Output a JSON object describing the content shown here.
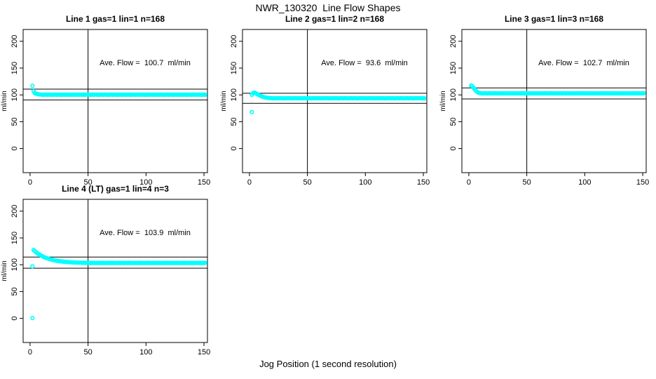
{
  "header": {
    "title": "NWR_130320  Line Flow Shapes"
  },
  "footer": {
    "xlabel": "Jog Position (1 second resolution)"
  },
  "colors": {
    "series": "#00FFFF",
    "axis": "#000000",
    "background": "#FFFFFF"
  },
  "chart_data": {
    "type": "scatter",
    "title": "NWR_130320  Line Flow Shapes",
    "xlabel": "Jog Position (1 second resolution)",
    "ylabel": "ml/min",
    "marker": "open-circle",
    "marker_color": "#00FFFF",
    "grid": false,
    "xticks": [
      0,
      50,
      100,
      150
    ],
    "yticks": [
      0,
      50,
      100,
      150,
      200
    ],
    "xlim": [
      -6,
      153
    ],
    "ylim": [
      -45,
      222
    ],
    "vline_x": 50,
    "panels": [
      {
        "title": "Line 1 gas=1 lin=1 n=168",
        "annotation": "Ave. Flow =  100.7  ml/min",
        "ave_flow": 100.7,
        "ref_lines": [
          110.8,
          90.6
        ],
        "x_start": 2,
        "y": [
          117,
          107,
          103.6,
          102.4,
          101.7,
          101.2,
          100.9,
          100.7,
          100.5,
          100.2,
          100.6,
          100.4,
          100.7,
          100.3,
          100.5,
          100.6,
          100.5,
          100.2,
          100.6,
          100.4,
          100.7,
          100.3,
          100.5,
          100.6,
          100.5,
          100.2,
          100.6,
          100.4,
          100.7,
          100.3,
          100.5,
          100.6,
          100.5,
          100.2,
          100.6,
          100.4,
          100.7,
          100.3,
          100.5,
          100.6,
          100.5,
          100.2,
          100.6,
          100.4,
          100.7,
          100.3,
          100.5,
          100.6,
          100.5,
          100.2,
          100.6,
          100.4,
          100.7,
          100.3,
          100.5,
          100.6,
          100.5,
          100.2,
          100.6,
          100.4,
          100.7,
          100.3,
          100.5,
          100.6,
          100.5,
          100.2,
          100.6,
          100.4,
          100.7,
          100.3,
          100.5,
          100.6,
          100.5,
          100.2,
          100.6,
          100.4,
          100.7,
          100.3,
          100.5,
          100.6,
          100.5,
          100.2,
          100.6,
          100.4,
          100.7,
          100.3,
          100.5,
          100.6,
          100.5,
          100.2,
          100.6,
          100.4,
          100.7,
          100.3,
          100.5,
          100.6,
          100.5,
          100.2,
          100.6,
          100.4,
          100.7,
          100.3,
          100.5,
          100.6,
          100.5,
          100.2,
          100.6,
          100.4,
          100.7,
          100.3,
          100.5,
          100.6,
          100.5,
          100.2,
          100.6,
          100.4,
          100.7,
          100.3,
          100.5,
          100.6,
          100.5,
          100.2,
          100.6,
          100.4,
          100.7,
          100.3,
          100.5,
          100.6,
          100.5,
          100.2,
          100.6,
          100.4,
          100.7,
          100.3,
          100.5,
          100.6,
          100.5,
          100.2,
          100.6,
          100.4,
          100.7,
          100.3,
          100.5,
          100.6,
          100.5,
          100.2,
          100.6,
          100.4,
          100.7,
          100.3
        ],
        "extra_points": []
      },
      {
        "title": "Line 2 gas=1 lin=2 n=168",
        "annotation": "Ave. Flow =  93.6  ml/min",
        "ave_flow": 93.6,
        "ref_lines": [
          103.0,
          84.2
        ],
        "x_start": 2,
        "y": [
          100.2,
          102.8,
          104.2,
          103.8,
          102.5,
          101.1,
          99.9,
          98.8,
          97.8,
          97.0,
          96.2,
          95.6,
          95.1,
          94.7,
          94.4,
          94.2,
          94.0,
          93.9,
          93.7,
          93.4,
          93.8,
          93.6,
          93.9,
          93.5,
          93.7,
          93.8,
          93.7,
          93.4,
          93.8,
          93.6,
          93.9,
          93.5,
          93.7,
          93.8,
          93.7,
          93.4,
          93.8,
          93.6,
          93.9,
          93.5,
          93.7,
          93.8,
          93.7,
          93.4,
          93.8,
          93.6,
          93.9,
          93.5,
          93.7,
          93.8,
          93.7,
          93.4,
          93.8,
          93.6,
          93.9,
          93.5,
          93.7,
          93.8,
          93.7,
          93.4,
          93.8,
          93.6,
          93.9,
          93.5,
          93.7,
          93.8,
          93.7,
          93.4,
          93.8,
          93.6,
          93.9,
          93.5,
          93.7,
          93.8,
          93.7,
          93.4,
          93.8,
          93.6,
          93.9,
          93.5,
          93.7,
          93.8,
          93.7,
          93.4,
          93.8,
          93.6,
          93.9,
          93.5,
          93.7,
          93.8,
          93.7,
          93.4,
          93.8,
          93.6,
          93.9,
          93.5,
          93.7,
          93.8,
          93.7,
          93.4,
          93.8,
          93.6,
          93.9,
          93.5,
          93.7,
          93.8,
          93.7,
          93.4,
          93.8,
          93.6,
          93.9,
          93.5,
          93.7,
          93.8,
          93.7,
          93.4,
          93.8,
          93.6,
          93.9,
          93.5,
          93.7,
          93.8,
          93.7,
          93.4,
          93.8,
          93.6,
          93.9,
          93.5,
          93.7,
          93.8,
          93.7,
          93.4,
          93.8,
          93.6,
          93.9,
          93.5,
          93.7,
          93.8,
          93.7,
          93.4,
          93.8,
          93.6,
          93.9,
          93.5,
          93.7,
          93.8,
          93.7,
          93.4,
          93.8,
          93.6
        ],
        "extra_points": [
          [
            2,
            68
          ]
        ]
      },
      {
        "title": "Line 3 gas=1 lin=3 n=168",
        "annotation": "Ave. Flow =  102.7  ml/min",
        "ave_flow": 102.7,
        "ref_lines": [
          113.0,
          92.4
        ],
        "x_start": 2,
        "y": [
          117.5,
          116.2,
          113.4,
          110.4,
          107.9,
          105.9,
          104.5,
          103.6,
          103.1,
          102.9,
          102.6,
          103.0,
          102.8,
          103.1,
          102.7,
          102.9,
          103.0,
          102.9,
          102.6,
          103.0,
          102.8,
          103.1,
          102.7,
          102.9,
          103.0,
          102.9,
          102.6,
          103.0,
          102.8,
          103.1,
          102.7,
          102.9,
          103.0,
          102.9,
          102.6,
          103.0,
          102.8,
          103.1,
          102.7,
          102.9,
          103.0,
          102.9,
          102.6,
          103.0,
          102.8,
          103.1,
          102.7,
          102.9,
          103.0,
          102.9,
          102.6,
          103.0,
          102.8,
          103.1,
          102.7,
          102.9,
          103.0,
          102.9,
          102.6,
          103.0,
          102.8,
          103.1,
          102.7,
          102.9,
          103.0,
          102.9,
          102.6,
          103.0,
          102.8,
          103.1,
          102.7,
          102.9,
          103.0,
          102.9,
          102.6,
          103.0,
          102.8,
          103.1,
          102.7,
          102.9,
          103.0,
          102.9,
          102.6,
          103.0,
          102.8,
          103.1,
          102.7,
          102.9,
          103.0,
          102.9,
          102.6,
          103.0,
          102.8,
          103.1,
          102.7,
          102.9,
          103.0,
          102.9,
          102.6,
          103.0,
          102.8,
          103.1,
          102.7,
          102.9,
          103.0,
          102.9,
          102.6,
          103.0,
          102.8,
          103.1,
          102.7,
          102.9,
          103.0,
          102.9,
          102.6,
          103.0,
          102.8,
          103.1,
          102.7,
          102.9,
          103.0,
          102.9,
          102.6,
          103.0,
          102.8,
          103.1,
          102.7,
          102.9,
          103.0,
          102.9,
          102.6,
          103.0,
          102.8,
          103.1,
          102.7,
          102.9,
          103.0,
          102.9,
          102.6,
          103.0,
          102.8,
          103.1,
          102.7,
          102.9,
          103.0,
          102.9,
          102.6,
          103.0,
          102.8,
          103.1
        ],
        "extra_points": []
      },
      {
        "title": "Line 4 (LT) gas=1 lin=4 n=3",
        "annotation": "Ave. Flow =  103.9  ml/min",
        "ave_flow": 103.9,
        "ref_lines": [
          114.3,
          93.5
        ],
        "x_start": 3,
        "y": [
          127.6,
          125.6,
          123.7,
          122.0,
          120.4,
          119.0,
          117.7,
          116.5,
          115.4,
          114.3,
          113.4,
          112.6,
          111.8,
          111.1,
          110.4,
          109.8,
          109.2,
          108.7,
          108.3,
          107.8,
          107.4,
          107.1,
          106.8,
          106.5,
          106.2,
          105.9,
          105.7,
          105.5,
          105.3,
          105.1,
          104.9,
          104.8,
          104.6,
          104.5,
          104.4,
          104.3,
          104.2,
          104.1,
          104.0,
          103.9,
          103.9,
          103.8,
          103.7,
          103.7,
          103.6,
          103.6,
          103.5,
          103.5,
          103.4,
          103.1,
          103.5,
          103.2,
          103.6,
          103.3,
          103.2,
          103.4,
          103.4,
          103.1,
          103.5,
          103.2,
          103.6,
          103.3,
          103.2,
          103.4,
          103.4,
          103.1,
          103.5,
          103.2,
          103.6,
          103.3,
          103.2,
          103.4,
          103.4,
          103.1,
          103.5,
          103.2,
          103.6,
          103.3,
          103.2,
          103.4,
          103.4,
          103.1,
          103.5,
          103.2,
          103.6,
          103.3,
          103.2,
          103.4,
          103.4,
          103.1,
          103.5,
          103.2,
          103.6,
          103.3,
          103.2,
          103.4,
          103.4,
          103.1,
          103.5,
          103.2,
          103.6,
          103.3,
          103.2,
          103.4,
          103.4,
          103.1,
          103.5,
          103.2,
          103.6,
          103.3,
          103.2,
          103.4,
          103.4,
          103.1,
          103.5,
          103.2,
          103.6,
          103.3,
          103.2,
          103.4,
          103.4,
          103.1,
          103.5,
          103.2,
          103.6,
          103.3,
          103.2,
          103.4,
          103.4,
          103.1,
          103.5,
          103.2,
          103.6,
          103.3,
          103.2,
          103.4,
          103.4,
          103.1,
          103.5,
          103.2,
          103.6,
          103.3,
          103.2,
          103.4,
          103.4,
          103.1,
          103.5,
          103.2,
          103.6
        ],
        "extra_points": [
          [
            2,
            0.5
          ],
          [
            2,
            97
          ]
        ]
      }
    ]
  }
}
